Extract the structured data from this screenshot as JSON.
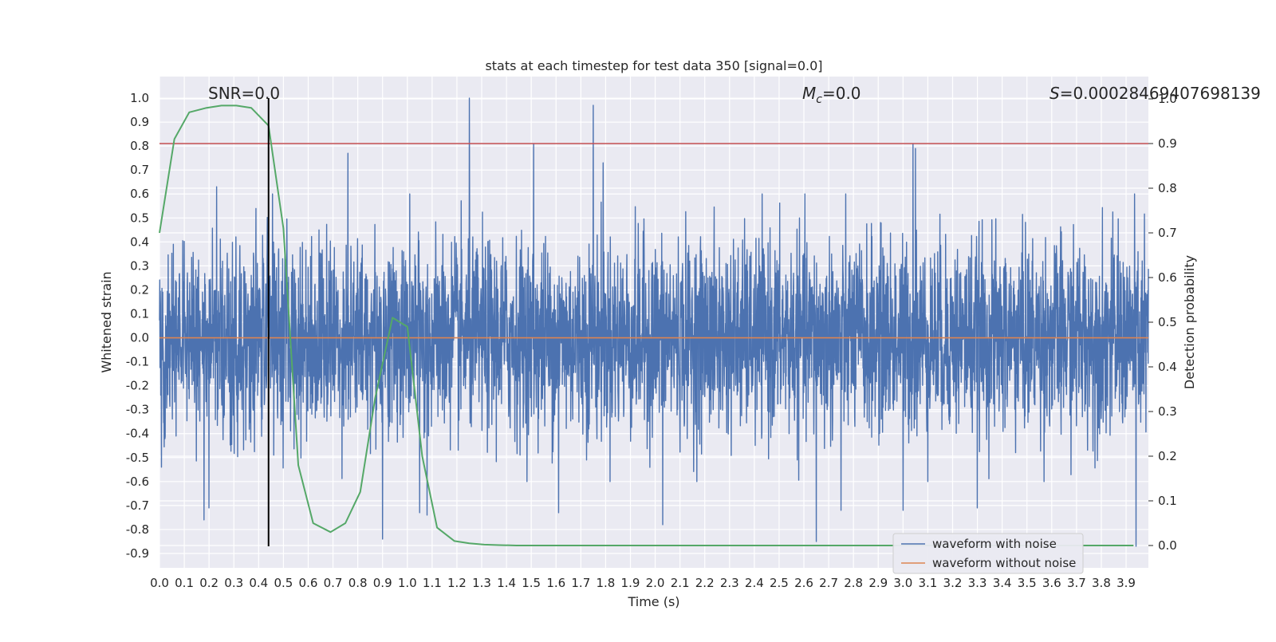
{
  "chart_data": {
    "type": "line",
    "title": "stats at each timestep for test data 350 [signal=0.0]",
    "xlabel": "Time (s)",
    "ylabel": "Whitened strain",
    "y2label": "Detection probability",
    "xlim": [
      0.0,
      3.99
    ],
    "ylim": [
      -0.96,
      1.09
    ],
    "y2lim": [
      -0.05,
      1.05
    ],
    "xticks": [
      "0.0",
      "0.1",
      "0.2",
      "0.3",
      "0.4",
      "0.5",
      "0.6",
      "0.7",
      "0.8",
      "0.9",
      "1.0",
      "1.1",
      "1.2",
      "1.3",
      "1.4",
      "1.5",
      "1.6",
      "1.7",
      "1.8",
      "1.9",
      "2.0",
      "2.1",
      "2.2",
      "2.3",
      "2.4",
      "2.5",
      "2.6",
      "2.7",
      "2.8",
      "2.9",
      "3.0",
      "3.1",
      "3.2",
      "3.3",
      "3.4",
      "3.5",
      "3.6",
      "3.7",
      "3.8",
      "3.9"
    ],
    "yticks": [
      "1.0",
      "0.9",
      "0.8",
      "0.7",
      "0.6",
      "0.5",
      "0.4",
      "0.3",
      "0.2",
      "0.1",
      "0.0",
      "-0.1",
      "-0.2",
      "-0.3",
      "-0.4",
      "-0.5",
      "-0.6",
      "-0.7",
      "-0.8",
      "-0.9"
    ],
    "y2ticks": [
      "1.0",
      "0.9",
      "0.8",
      "0.7",
      "0.6",
      "0.5",
      "0.4",
      "0.3",
      "0.2",
      "0.1",
      "0.0"
    ],
    "grid": true,
    "legend_position": "lower-right",
    "annotations": {
      "snr": "SNR=0.0",
      "mc_symbol": "M",
      "mc_sub": "c",
      "mc_value": "=0.0",
      "s_symbol": "S",
      "s_value": "=0.00028469407698139"
    },
    "series": [
      {
        "name": "waveform with noise",
        "color": "#4c72b0",
        "noise_std": 0.2,
        "noise_points": 4000,
        "spikes": [
          [
            0.23,
            0.63
          ],
          [
            0.76,
            0.77
          ],
          [
            1.25,
            1.0
          ],
          [
            1.51,
            0.81
          ],
          [
            1.75,
            0.97
          ],
          [
            1.79,
            0.73
          ],
          [
            3.04,
            0.81
          ],
          [
            3.05,
            0.79
          ],
          [
            0.18,
            -0.76
          ],
          [
            0.2,
            -0.71
          ],
          [
            0.9,
            -0.84
          ],
          [
            1.05,
            -0.73
          ],
          [
            1.08,
            -0.74
          ],
          [
            1.61,
            -0.73
          ],
          [
            2.03,
            -0.78
          ],
          [
            2.65,
            -0.85
          ],
          [
            2.75,
            -0.72
          ],
          [
            3.0,
            -0.72
          ],
          [
            3.3,
            -0.71
          ],
          [
            3.94,
            -0.87
          ]
        ]
      },
      {
        "name": "waveform without noise",
        "color": "#dd8452",
        "x": [
          0.0,
          3.99
        ],
        "y": [
          0.0,
          0.0
        ]
      },
      {
        "color": "#55a868",
        "axis": "right",
        "x": [
          0.0,
          0.06,
          0.12,
          0.19,
          0.25,
          0.31,
          0.37,
          0.44,
          0.5,
          0.56,
          0.62,
          0.69,
          0.75,
          0.81,
          0.87,
          0.94,
          1.0,
          1.06,
          1.12,
          1.19,
          1.25,
          1.31,
          1.37,
          1.44,
          1.5,
          1.6,
          1.8,
          2.2,
          2.6,
          3.0,
          3.4,
          3.8,
          3.93
        ],
        "y": [
          0.7,
          0.91,
          0.97,
          0.98,
          0.985,
          0.985,
          0.98,
          0.94,
          0.71,
          0.18,
          0.05,
          0.03,
          0.05,
          0.12,
          0.33,
          0.51,
          0.49,
          0.2,
          0.04,
          0.01,
          0.005,
          0.002,
          0.001,
          0.0,
          0.0,
          0.0,
          0.0,
          0.0,
          0.0,
          0.0,
          0.0,
          0.0,
          0.0
        ]
      }
    ],
    "hlines": [
      {
        "y": 0.9,
        "axis": "right",
        "color": "#c44e52"
      }
    ],
    "vlines": [
      {
        "x": 0.44,
        "ymin": -0.87,
        "ymax": 1.0,
        "color": "#000000"
      }
    ]
  }
}
